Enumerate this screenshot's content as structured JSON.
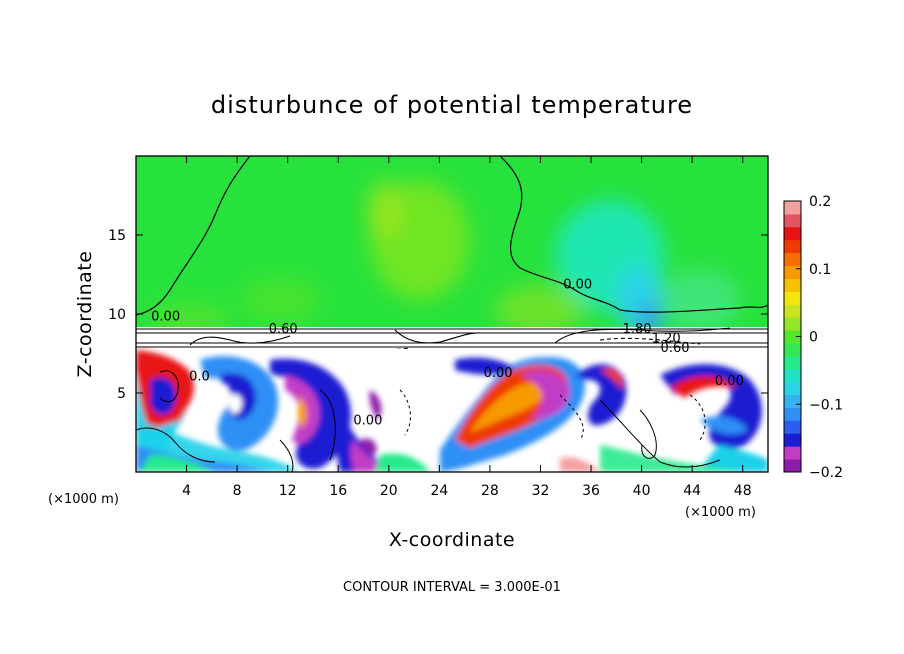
{
  "chart_data": {
    "type": "heatmap",
    "title": "disturbunce of potential temperature",
    "xlabel": "X-coordinate",
    "ylabel": "Z-coordinate",
    "x_unit": "(×1000 m)",
    "x_unit_right": "(×1000 m)",
    "footer": "CONTOUR INTERVAL = 3.000E-01",
    "xlim": [
      0,
      50
    ],
    "ylim": [
      0,
      20
    ],
    "xticks": [
      4,
      8,
      12,
      16,
      20,
      24,
      28,
      32,
      36,
      40,
      44,
      48
    ],
    "xtick_labels": [
      "4",
      "8",
      "12",
      "16",
      "20",
      "24",
      "28",
      "32",
      "36",
      "40",
      "44",
      "48"
    ],
    "yticks": [
      5,
      10,
      15
    ],
    "ytick_labels": [
      "5",
      "10",
      "15"
    ],
    "colorbar": {
      "min": -0.2,
      "max": 0.2,
      "tick_values": [
        0.2,
        0.1,
        0,
        -0.1,
        -0.2
      ],
      "tick_labels": [
        "0.2",
        "0.1",
        "0",
        "−0.1",
        "−0.2"
      ],
      "colors": [
        "#8e1ca8",
        "#c23cc6",
        "#1c1cd2",
        "#2c5cf0",
        "#2f8ff5",
        "#33b4f0",
        "#2ad3e6",
        "#20e3c3",
        "#27ea8c",
        "#32ea4f",
        "#52e62c",
        "#94e627",
        "#cbe41e",
        "#f2e60a",
        "#f7bf00",
        "#f79a00",
        "#f56f00",
        "#ef3a00",
        "#e81212",
        "#e45560",
        "#f5a0a0"
      ]
    },
    "contour_labels": [
      {
        "text": "0.00",
        "x": 1.2,
        "y": 9.6
      },
      {
        "text": "0.60",
        "x": 10.5,
        "y": 8.8
      },
      {
        "text": "0.00",
        "x": 33.8,
        "y": 11.6
      },
      {
        "text": "1.80",
        "x": 38.5,
        "y": 8.8
      },
      {
        "text": "1.20",
        "x": 40.8,
        "y": 8.2
      },
      {
        "text": "0.60",
        "x": 41.5,
        "y": 7.6
      },
      {
        "text": "0.00",
        "x": 27.5,
        "y": 6.0
      },
      {
        "text": "0.00",
        "x": 45.8,
        "y": 5.5
      },
      {
        "text": "0.00",
        "x": 17.2,
        "y": 3.0
      },
      {
        "text": "0.0",
        "x": 4.2,
        "y": 5.8
      }
    ]
  }
}
